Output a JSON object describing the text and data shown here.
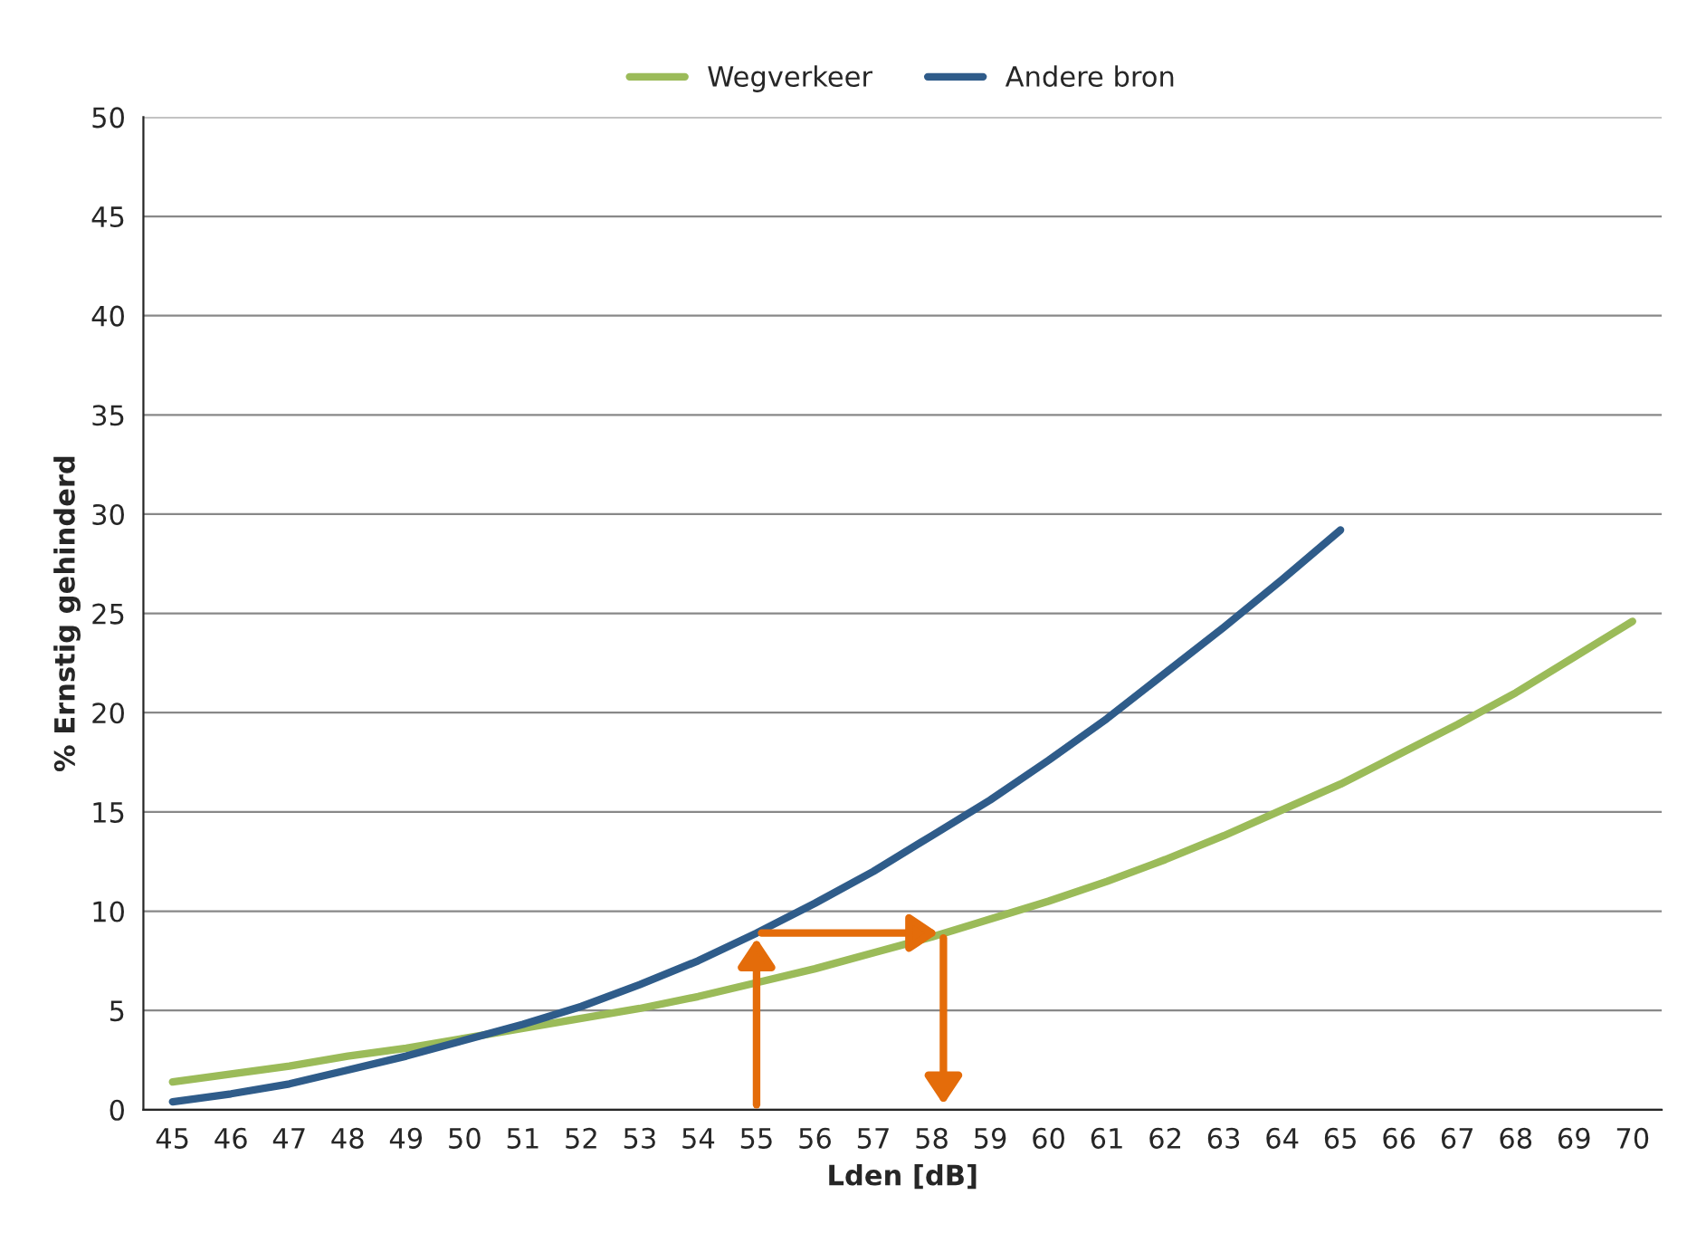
{
  "chart_data": {
    "type": "line",
    "xlabel": "Lden [dB]",
    "ylabel": "% Ernstig gehinderd",
    "categories": [
      "45",
      "46",
      "47",
      "48",
      "49",
      "50",
      "51",
      "52",
      "53",
      "54",
      "55",
      "56",
      "57",
      "58",
      "59",
      "60",
      "61",
      "62",
      "63",
      "64",
      "65",
      "66",
      "67",
      "68",
      "69",
      "70"
    ],
    "series": [
      {
        "name": "Wegverkeer",
        "color": "#9bbb59",
        "values": [
          1.4,
          1.8,
          2.2,
          2.7,
          3.1,
          3.6,
          4.1,
          4.6,
          5.1,
          5.7,
          6.4,
          7.1,
          7.9,
          8.7,
          9.6,
          10.5,
          11.5,
          12.6,
          13.8,
          15.1,
          16.4,
          17.9,
          19.4,
          21.0,
          22.8,
          24.6
        ]
      },
      {
        "name": "Andere bron",
        "color": "#2f5c8a",
        "values": [
          0.4,
          0.8,
          1.3,
          2.0,
          2.7,
          3.5,
          4.3,
          5.2,
          6.3,
          7.5,
          8.9,
          10.4,
          12.0,
          13.8,
          15.6,
          17.6,
          19.7,
          22.0,
          24.3,
          26.7,
          29.2,
          null,
          null,
          null,
          null,
          null
        ]
      }
    ],
    "ylim": [
      0,
      50
    ],
    "yticks": [
      0,
      5,
      10,
      15,
      20,
      25,
      30,
      35,
      40,
      45,
      50
    ],
    "grid": "y",
    "legend": "top",
    "line_style": "solid"
  }
}
